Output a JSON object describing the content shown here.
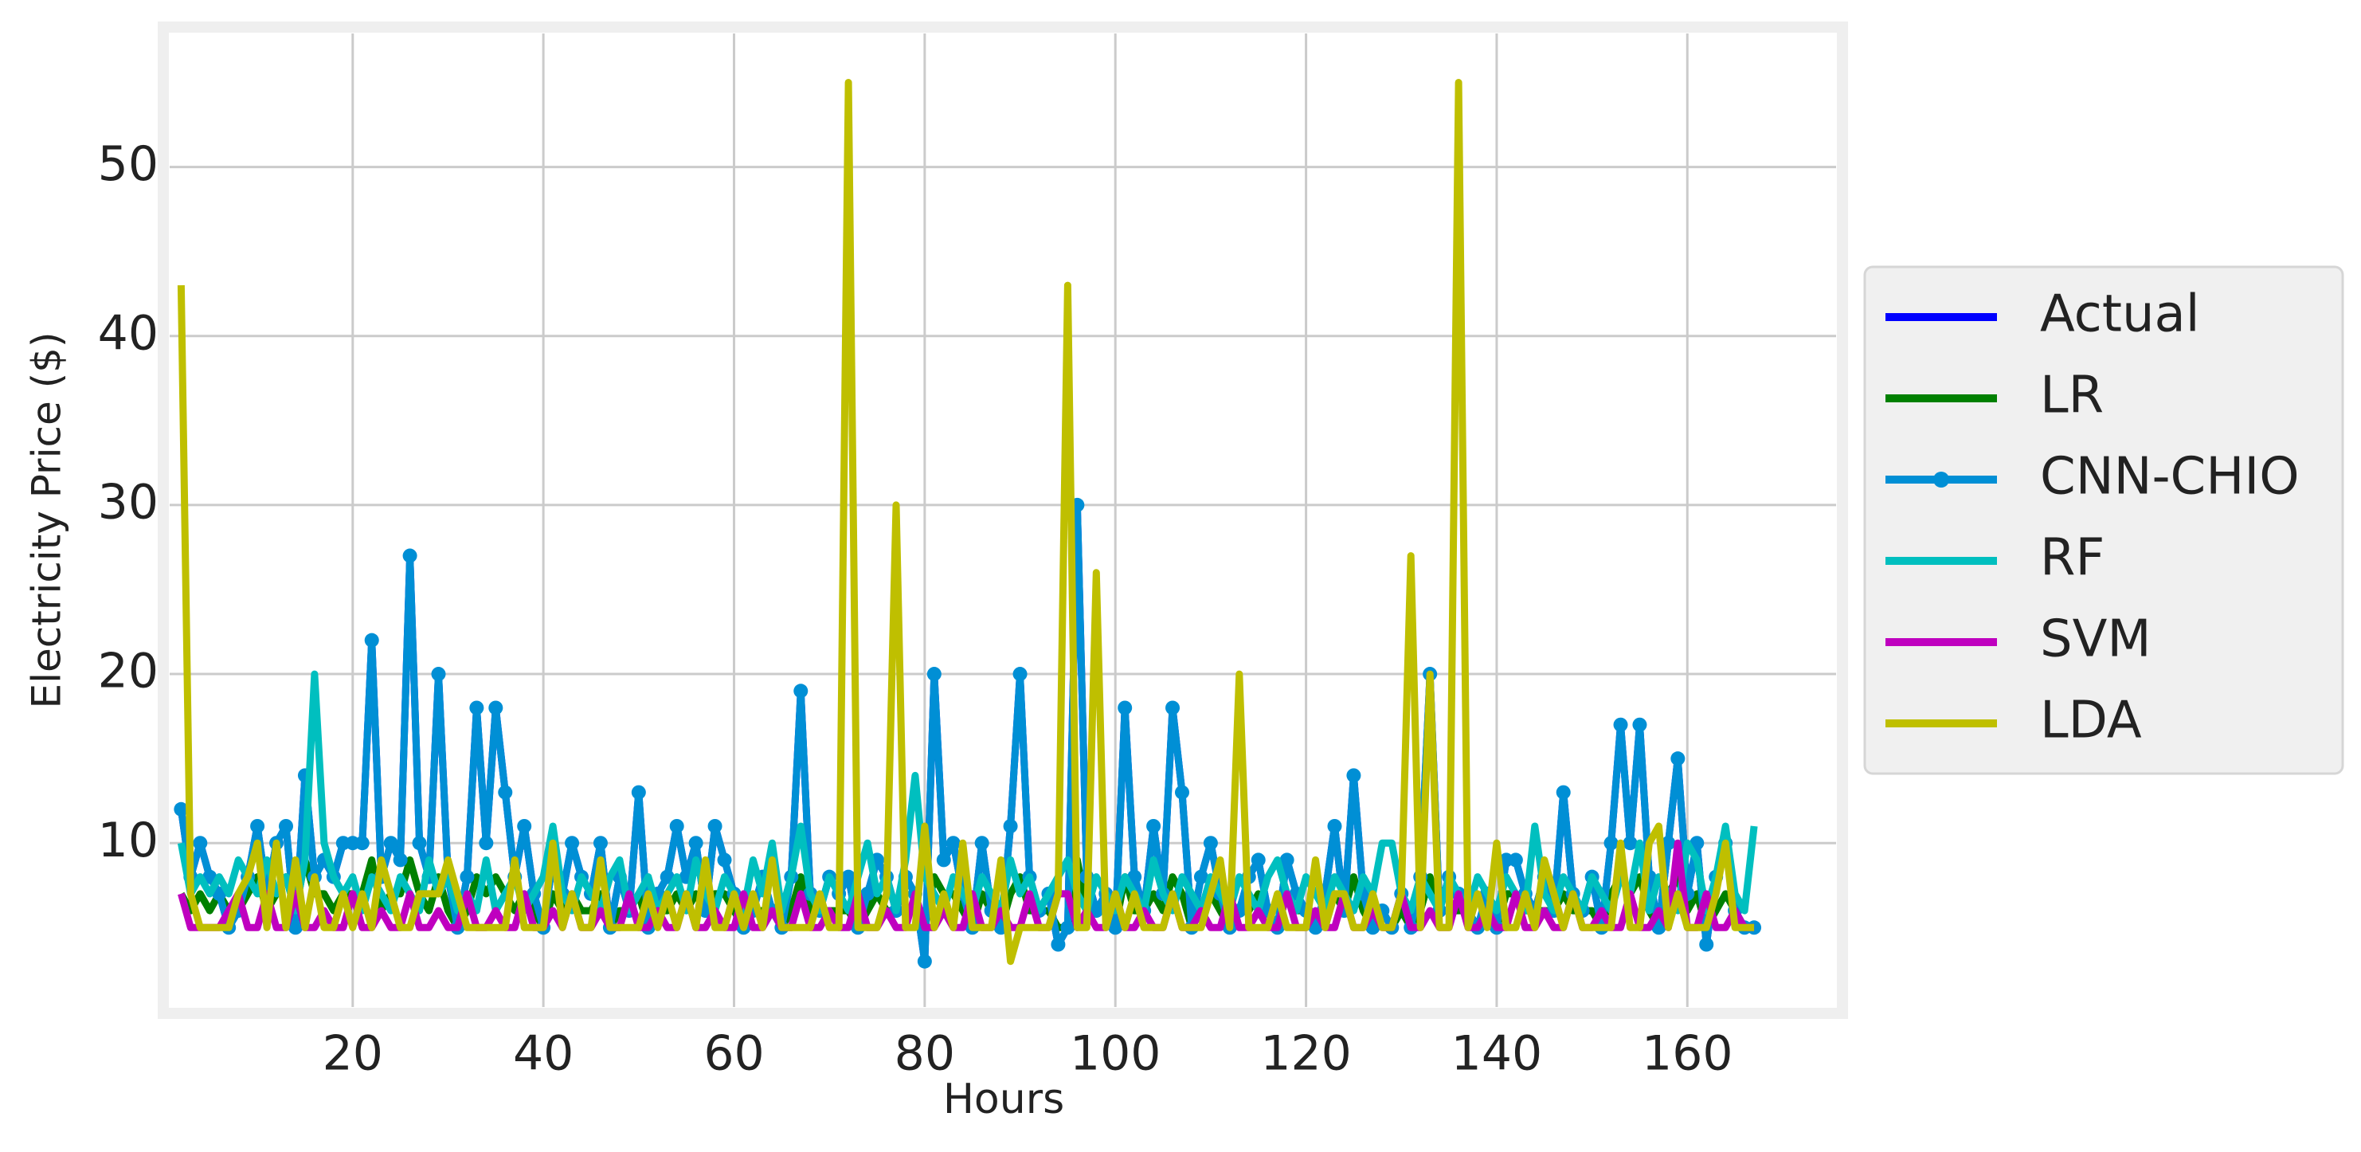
{
  "chart_data": {
    "type": "line",
    "xlabel": "Hours",
    "ylabel": "Electricity Price ($)",
    "x": [
      2,
      3,
      4,
      5,
      6,
      7,
      8,
      9,
      10,
      11,
      12,
      13,
      14,
      15,
      16,
      17,
      18,
      19,
      20,
      21,
      22,
      23,
      24,
      25,
      26,
      27,
      28,
      29,
      30,
      31,
      32,
      33,
      34,
      35,
      36,
      37,
      38,
      39,
      40,
      41,
      42,
      43,
      44,
      45,
      46,
      47,
      48,
      49,
      50,
      51,
      52,
      53,
      54,
      55,
      56,
      57,
      58,
      59,
      60,
      61,
      62,
      63,
      64,
      65,
      66,
      67,
      68,
      69,
      70,
      71,
      72,
      73,
      74,
      75,
      76,
      77,
      78,
      79,
      80,
      81,
      82,
      83,
      84,
      85,
      86,
      87,
      88,
      89,
      90,
      91,
      92,
      93,
      94,
      95,
      96,
      97,
      98,
      99,
      100,
      101,
      102,
      103,
      104,
      105,
      106,
      107,
      108,
      109,
      110,
      111,
      112,
      113,
      114,
      115,
      116,
      117,
      118,
      119,
      120,
      121,
      122,
      123,
      124,
      125,
      126,
      127,
      128,
      129,
      130,
      131,
      132,
      133,
      134,
      135,
      136,
      137,
      138,
      139,
      140,
      141,
      142,
      143,
      144,
      145,
      146,
      147,
      148,
      149,
      150,
      151,
      152,
      153,
      154,
      155,
      156,
      157,
      158,
      159,
      160,
      161,
      162,
      163,
      164,
      165,
      166,
      167
    ],
    "series": [
      {
        "name": "Actual",
        "color": "#0000ff",
        "values": [
          12,
          8,
          10,
          8,
          7,
          5,
          6,
          8,
          11,
          7,
          10,
          11,
          5,
          14,
          8,
          9,
          8,
          10,
          10,
          10,
          22,
          8,
          10,
          9,
          27,
          10,
          8,
          20,
          8,
          5,
          8,
          18,
          10,
          18,
          13,
          8,
          11,
          7,
          5,
          9,
          7,
          10,
          8,
          7,
          10,
          5,
          8,
          6,
          13,
          5,
          7,
          8,
          11,
          8,
          10,
          6,
          11,
          9,
          7,
          5,
          6,
          8,
          6,
          5,
          8,
          19,
          7,
          6,
          8,
          7,
          8,
          5,
          7,
          9,
          8,
          6,
          8,
          7,
          3,
          20,
          9,
          10,
          7,
          5,
          10,
          6,
          5,
          11,
          20,
          8,
          6,
          7,
          4,
          5,
          30,
          8,
          6,
          7,
          5,
          18,
          8,
          6,
          11,
          7,
          18,
          13,
          5,
          8,
          10,
          7,
          5,
          6,
          8,
          9,
          6,
          5,
          9,
          7,
          6,
          5,
          7,
          11,
          6,
          14,
          7,
          5,
          6,
          5,
          7,
          5,
          8,
          20,
          6,
          8,
          7,
          6,
          5,
          7,
          5,
          9,
          9,
          7,
          6,
          8,
          6,
          13,
          7,
          6,
          8,
          5,
          10,
          17,
          10,
          17,
          8,
          5,
          10,
          15,
          7,
          10,
          4,
          8,
          10,
          6,
          5,
          5
        ]
      },
      {
        "name": "LR",
        "color": "#008000",
        "values": [
          7,
          6,
          7,
          6,
          7,
          6,
          6,
          7,
          8,
          6,
          7,
          8,
          6,
          9,
          7,
          7,
          6,
          7,
          7,
          7,
          9,
          6,
          7,
          7,
          9,
          7,
          6,
          8,
          6,
          5,
          6,
          8,
          7,
          8,
          7,
          6,
          7,
          6,
          5,
          7,
          6,
          7,
          6,
          6,
          7,
          5,
          6,
          6,
          7,
          5,
          6,
          6,
          7,
          6,
          7,
          6,
          7,
          7,
          6,
          5,
          6,
          6,
          6,
          5,
          6,
          8,
          6,
          6,
          6,
          6,
          6,
          5,
          6,
          7,
          6,
          6,
          6,
          6,
          5,
          8,
          7,
          7,
          6,
          5,
          7,
          6,
          5,
          7,
          8,
          6,
          6,
          6,
          5,
          5,
          9,
          6,
          6,
          6,
          5,
          8,
          6,
          6,
          7,
          6,
          8,
          7,
          5,
          6,
          7,
          6,
          5,
          6,
          6,
          7,
          6,
          5,
          7,
          6,
          6,
          5,
          6,
          7,
          6,
          8,
          6,
          5,
          6,
          5,
          6,
          5,
          6,
          8,
          6,
          6,
          6,
          6,
          5,
          6,
          5,
          7,
          7,
          6,
          6,
          6,
          6,
          7,
          6,
          6,
          6,
          5,
          7,
          8,
          7,
          8,
          6,
          5,
          7,
          8,
          6,
          7,
          5,
          6,
          7,
          6,
          5,
          5
        ]
      },
      {
        "name": "CNN-CHIO",
        "color": "#008fd5",
        "marker": true,
        "values": [
          12,
          8,
          10,
          8,
          7,
          5,
          6,
          8,
          11,
          7,
          10,
          11,
          5,
          14,
          8,
          9,
          8,
          10,
          10,
          10,
          22,
          8,
          10,
          9,
          27,
          10,
          8,
          20,
          8,
          5,
          8,
          18,
          10,
          18,
          13,
          8,
          11,
          7,
          5,
          9,
          7,
          10,
          8,
          7,
          10,
          5,
          8,
          6,
          13,
          5,
          7,
          8,
          11,
          8,
          10,
          6,
          11,
          9,
          7,
          5,
          6,
          8,
          6,
          5,
          8,
          19,
          7,
          6,
          8,
          7,
          8,
          5,
          7,
          9,
          8,
          6,
          8,
          7,
          3,
          20,
          9,
          10,
          7,
          5,
          10,
          6,
          5,
          11,
          20,
          8,
          6,
          7,
          4,
          5,
          30,
          8,
          6,
          7,
          5,
          18,
          8,
          6,
          11,
          7,
          18,
          13,
          5,
          8,
          10,
          7,
          5,
          6,
          8,
          9,
          6,
          5,
          9,
          7,
          6,
          5,
          7,
          11,
          6,
          14,
          7,
          5,
          6,
          5,
          7,
          5,
          8,
          20,
          6,
          8,
          7,
          6,
          5,
          7,
          5,
          9,
          9,
          7,
          6,
          8,
          6,
          13,
          7,
          6,
          8,
          5,
          10,
          17,
          10,
          17,
          8,
          5,
          10,
          15,
          7,
          10,
          4,
          8,
          10,
          6,
          5,
          5
        ]
      },
      {
        "name": "RF",
        "color": "#00bfbf",
        "values": [
          10,
          7,
          8,
          7,
          8,
          7,
          9,
          8,
          7,
          9,
          7,
          8,
          6,
          9,
          20,
          10,
          8,
          7,
          8,
          6,
          8,
          7,
          6,
          8,
          7,
          6,
          9,
          7,
          8,
          6,
          7,
          6,
          9,
          6,
          7,
          8,
          6,
          7,
          8,
          11,
          7,
          6,
          8,
          7,
          6,
          8,
          9,
          6,
          7,
          8,
          6,
          7,
          8,
          6,
          9,
          7,
          6,
          8,
          7,
          6,
          9,
          7,
          10,
          6,
          8,
          11,
          7,
          6,
          8,
          7,
          6,
          8,
          10,
          7,
          8,
          6,
          9,
          14,
          8,
          7,
          6,
          8,
          7,
          6,
          8,
          7,
          6,
          9,
          7,
          8,
          6,
          7,
          8,
          9,
          7,
          6,
          8,
          7,
          6,
          8,
          7,
          6,
          9,
          7,
          6,
          8,
          7,
          6,
          8,
          7,
          6,
          8,
          7,
          6,
          8,
          9,
          7,
          6,
          8,
          7,
          6,
          8,
          7,
          6,
          8,
          7,
          10,
          10,
          7,
          6,
          8,
          7,
          6,
          8,
          7,
          6,
          8,
          7,
          6,
          8,
          7,
          6,
          11,
          7,
          6,
          8,
          7,
          6,
          8,
          7,
          6,
          8,
          7,
          10,
          6,
          8,
          7,
          6,
          10,
          9,
          6,
          8,
          11,
          7,
          6,
          11
        ]
      },
      {
        "name": "SVM",
        "color": "#bf00bf",
        "values": [
          7,
          5,
          5,
          5,
          5,
          6,
          7,
          5,
          5,
          7,
          5,
          5,
          7,
          5,
          5,
          6,
          5,
          5,
          7,
          5,
          5,
          6,
          5,
          5,
          7,
          5,
          5,
          6,
          5,
          5,
          7,
          5,
          5,
          6,
          5,
          5,
          7,
          5,
          5,
          6,
          5,
          7,
          5,
          5,
          6,
          5,
          5,
          7,
          5,
          5,
          6,
          5,
          5,
          7,
          5,
          5,
          6,
          5,
          5,
          7,
          5,
          5,
          6,
          5,
          5,
          7,
          5,
          5,
          6,
          5,
          5,
          7,
          5,
          5,
          6,
          5,
          5,
          7,
          5,
          5,
          6,
          5,
          5,
          7,
          5,
          5,
          6,
          5,
          5,
          7,
          5,
          5,
          7,
          7,
          5,
          6,
          5,
          5,
          7,
          5,
          5,
          6,
          5,
          5,
          7,
          5,
          5,
          6,
          5,
          5,
          7,
          5,
          5,
          6,
          5,
          5,
          7,
          5,
          5,
          6,
          5,
          5,
          7,
          5,
          5,
          6,
          5,
          5,
          7,
          5,
          5,
          6,
          5,
          5,
          7,
          5,
          5,
          6,
          5,
          5,
          7,
          5,
          5,
          6,
          5,
          5,
          7,
          5,
          5,
          6,
          5,
          5,
          7,
          5,
          5,
          6,
          5,
          10,
          5,
          5,
          7,
          5,
          5,
          6,
          5,
          5
        ]
      },
      {
        "name": "LDA",
        "color": "#bfbf00",
        "values": [
          43,
          7,
          5,
          5,
          5,
          5,
          7,
          8,
          10,
          5,
          10,
          5,
          9,
          5,
          8,
          5,
          5,
          7,
          5,
          7,
          5,
          9,
          7,
          5,
          5,
          7,
          7,
          7,
          9,
          7,
          5,
          5,
          5,
          5,
          5,
          9,
          5,
          5,
          5,
          10,
          5,
          7,
          5,
          5,
          9,
          5,
          5,
          5,
          5,
          7,
          5,
          7,
          5,
          7,
          5,
          9,
          5,
          5,
          7,
          5,
          7,
          5,
          9,
          5,
          5,
          5,
          5,
          7,
          5,
          5,
          55,
          5,
          5,
          5,
          7,
          30,
          5,
          5,
          11,
          5,
          7,
          5,
          10,
          5,
          5,
          5,
          9,
          3,
          5,
          5,
          5,
          5,
          7,
          43,
          5,
          5,
          26,
          5,
          7,
          5,
          7,
          5,
          5,
          5,
          7,
          5,
          5,
          5,
          7,
          9,
          5,
          20,
          5,
          5,
          5,
          7,
          5,
          5,
          5,
          9,
          5,
          7,
          7,
          5,
          5,
          7,
          5,
          5,
          7,
          27,
          5,
          20,
          5,
          5,
          55,
          5,
          7,
          5,
          10,
          5,
          5,
          7,
          5,
          9,
          7,
          5,
          7,
          5,
          5,
          5,
          5,
          10,
          5,
          5,
          10,
          11,
          5,
          7,
          5,
          5,
          5,
          7,
          10,
          5,
          5,
          5
        ]
      }
    ],
    "xlim": [
      0.8,
      175.6
    ],
    "ylim": [
      0.3,
      57.9
    ],
    "xticks": [
      20,
      40,
      60,
      80,
      100,
      120,
      140,
      160
    ],
    "yticks": [
      10,
      20,
      30,
      40,
      50
    ],
    "grid": true,
    "legend": "right"
  }
}
